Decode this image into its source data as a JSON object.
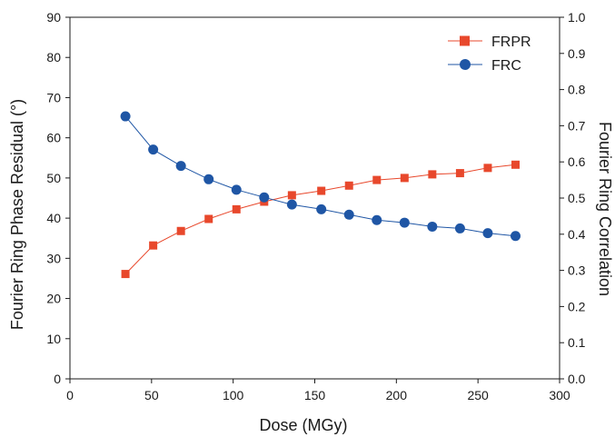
{
  "chart_data": {
    "type": "line",
    "title": "",
    "xlabel": "Dose (MGy)",
    "ylabel": "Fourier Ring Phase Residual (°)",
    "y2label": "Fourier Ring Correlation",
    "xlim": [
      0,
      300
    ],
    "ylim": [
      0,
      90
    ],
    "y2lim": [
      0.0,
      1.0
    ],
    "x_ticks": [
      "0",
      "50",
      "100",
      "150",
      "200",
      "250",
      "300"
    ],
    "y_ticks": [
      "0",
      "10",
      "20",
      "30",
      "40",
      "50",
      "60",
      "70",
      "80",
      "90"
    ],
    "y2_ticks": [
      "0.0",
      "0.1",
      "0.2",
      "0.3",
      "0.4",
      "0.5",
      "0.6",
      "0.7",
      "0.8",
      "0.9",
      "1.0"
    ],
    "grid": false,
    "legend_position": "top-right",
    "series": [
      {
        "name": "FRPR",
        "axis": "left",
        "marker": "square",
        "color": "#e8482c",
        "x": [
          34,
          51,
          68,
          85,
          102,
          119,
          136,
          154,
          171,
          188,
          205,
          222,
          239,
          256,
          273
        ],
        "y": [
          26.1,
          33.2,
          36.8,
          39.8,
          42.2,
          44.1,
          45.7,
          46.8,
          48.1,
          49.5,
          50.0,
          50.9,
          51.2,
          52.5,
          53.3
        ]
      },
      {
        "name": "FRC",
        "axis": "right",
        "marker": "circle",
        "color": "#1f56a5",
        "x": [
          34,
          51,
          68,
          85,
          102,
          119,
          136,
          154,
          171,
          188,
          205,
          222,
          239,
          256,
          273
        ],
        "y": [
          0.726,
          0.634,
          0.589,
          0.552,
          0.523,
          0.502,
          0.482,
          0.469,
          0.454,
          0.439,
          0.432,
          0.421,
          0.416,
          0.403,
          0.395
        ]
      }
    ]
  }
}
